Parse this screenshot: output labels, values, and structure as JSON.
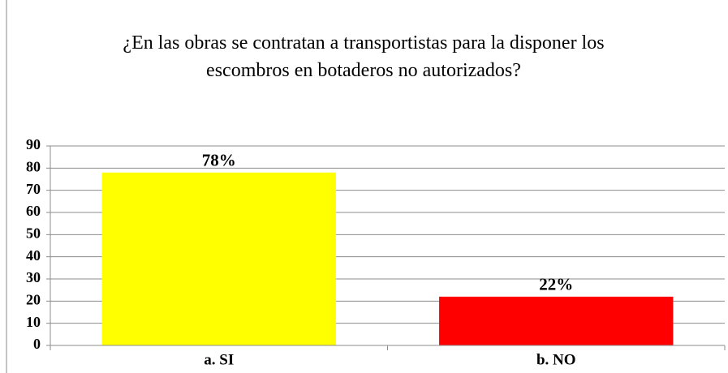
{
  "chart_data": {
    "type": "bar",
    "title": "¿En las obras se contratan a transportistas para la disponer los escombros en botaderos no autorizados?",
    "categories": [
      "a. SI",
      "b. NO"
    ],
    "values": [
      78,
      22
    ],
    "value_labels": [
      "78%",
      "22%"
    ],
    "colors": [
      "#ffff00",
      "#ff0000"
    ],
    "ylim": [
      0,
      90
    ],
    "yticks": [
      0,
      10,
      20,
      30,
      40,
      50,
      60,
      70,
      80,
      90
    ],
    "grid": true
  }
}
